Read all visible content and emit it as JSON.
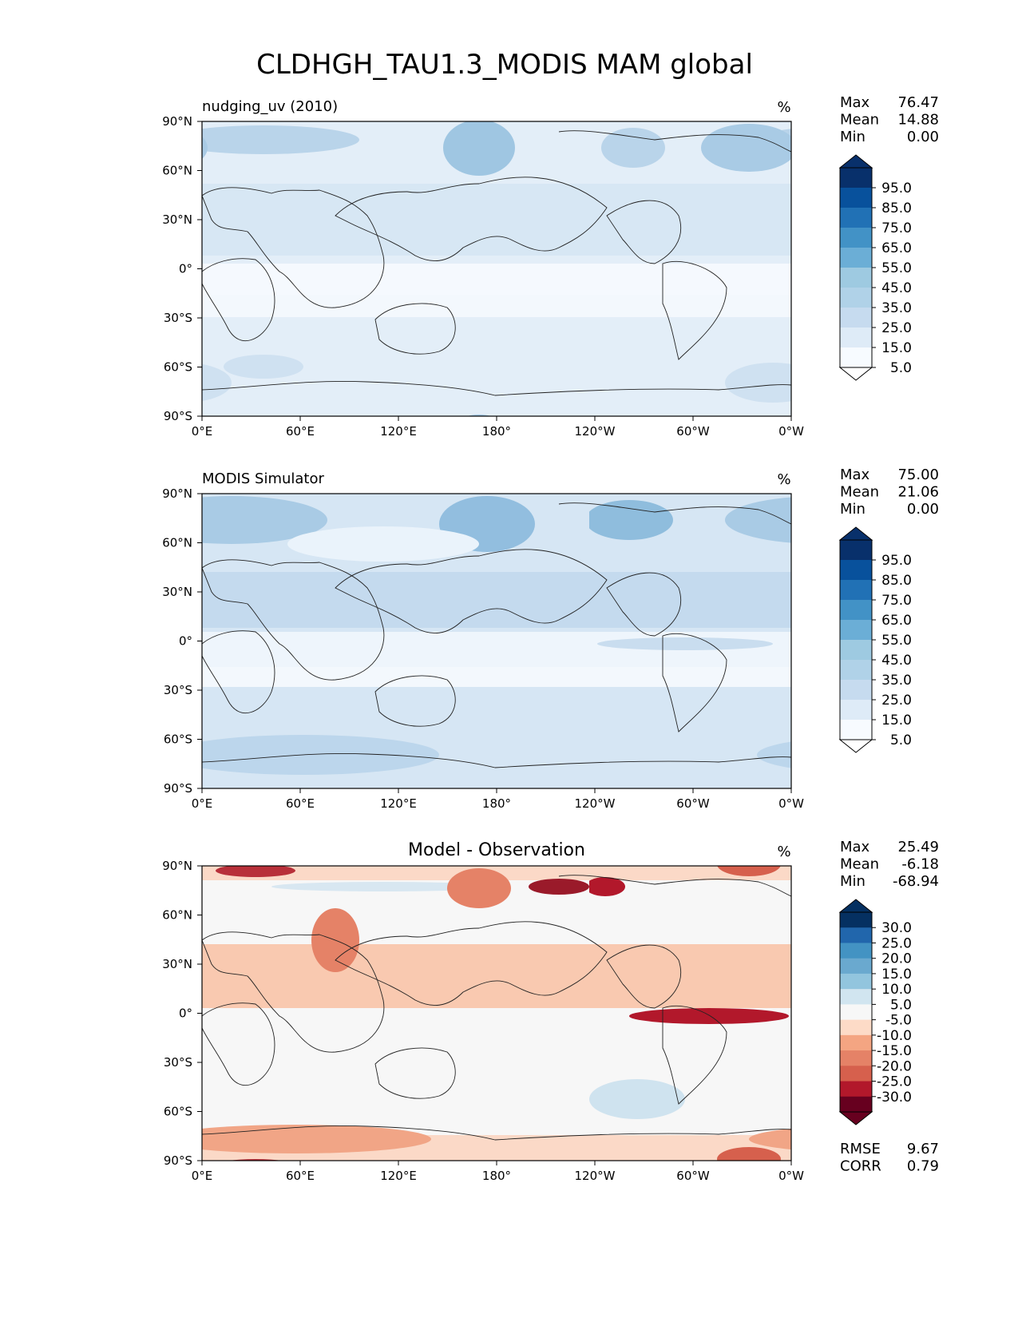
{
  "title": "CLDHGH_TAU1.3_MODIS MAM global",
  "xticks": [
    "0°E",
    "60°E",
    "120°E",
    "180°",
    "120°W",
    "60°W",
    "0°W"
  ],
  "yticks": [
    "90°N",
    "60°N",
    "30°N",
    "0°",
    "30°S",
    "60°S",
    "90°S"
  ],
  "panels": [
    {
      "id": "test",
      "left_title": "nudging_uv (2010)",
      "center_title": "",
      "units": "%",
      "stats": [
        {
          "label": "Max",
          "value": "76.47"
        },
        {
          "label": "Mean",
          "value": "14.88"
        },
        {
          "label": "Min",
          "value": "0.00"
        }
      ],
      "colorbar": {
        "colors": [
          "#f7fbff",
          "#deebf7",
          "#c6dbef",
          "#b0d2e8",
          "#9ecae1",
          "#6baed6",
          "#4292c6",
          "#2171b5",
          "#08519c",
          "#08306b"
        ],
        "over": "#08306b",
        "under": "#ffffff",
        "labels": [
          "95.0",
          "85.0",
          "75.0",
          "65.0",
          "55.0",
          "45.0",
          "35.0",
          "25.0",
          "15.0",
          "5.0"
        ]
      },
      "footer": []
    },
    {
      "id": "ref",
      "left_title": "MODIS Simulator",
      "center_title": "",
      "units": "%",
      "stats": [
        {
          "label": "Max",
          "value": "75.00"
        },
        {
          "label": "Mean",
          "value": "21.06"
        },
        {
          "label": "Min",
          "value": "0.00"
        }
      ],
      "colorbar": {
        "colors": [
          "#f7fbff",
          "#deebf7",
          "#c6dbef",
          "#b0d2e8",
          "#9ecae1",
          "#6baed6",
          "#4292c6",
          "#2171b5",
          "#08519c",
          "#08306b"
        ],
        "over": "#08306b",
        "under": "#ffffff",
        "labels": [
          "95.0",
          "85.0",
          "75.0",
          "65.0",
          "55.0",
          "45.0",
          "35.0",
          "25.0",
          "15.0",
          "5.0"
        ]
      },
      "footer": []
    },
    {
      "id": "diff",
      "left_title": "",
      "center_title": "Model - Observation",
      "units": "%",
      "stats": [
        {
          "label": "Max",
          "value": "25.49"
        },
        {
          "label": "Mean",
          "value": "-6.18"
        },
        {
          "label": "Min",
          "value": "-68.94"
        }
      ],
      "colorbar": {
        "colors": [
          "#67001f",
          "#b2182b",
          "#d6604d",
          "#e58267",
          "#f4a582",
          "#fddbc7",
          "#f7f7f7",
          "#d1e5f0",
          "#92c5de",
          "#6aa9cf",
          "#4393c3",
          "#2166ac",
          "#053061"
        ],
        "over": "#053061",
        "under": "#67001f",
        "labels": [
          "30.0",
          "25.0",
          "20.0",
          "15.0",
          "10.0",
          "5.0",
          "-5.0",
          "-10.0",
          "-15.0",
          "-20.0",
          "-25.0",
          "-30.0"
        ]
      },
      "footer": [
        {
          "label": "RMSE",
          "value": "9.67"
        },
        {
          "label": "CORR",
          "value": "0.79"
        }
      ]
    }
  ]
}
